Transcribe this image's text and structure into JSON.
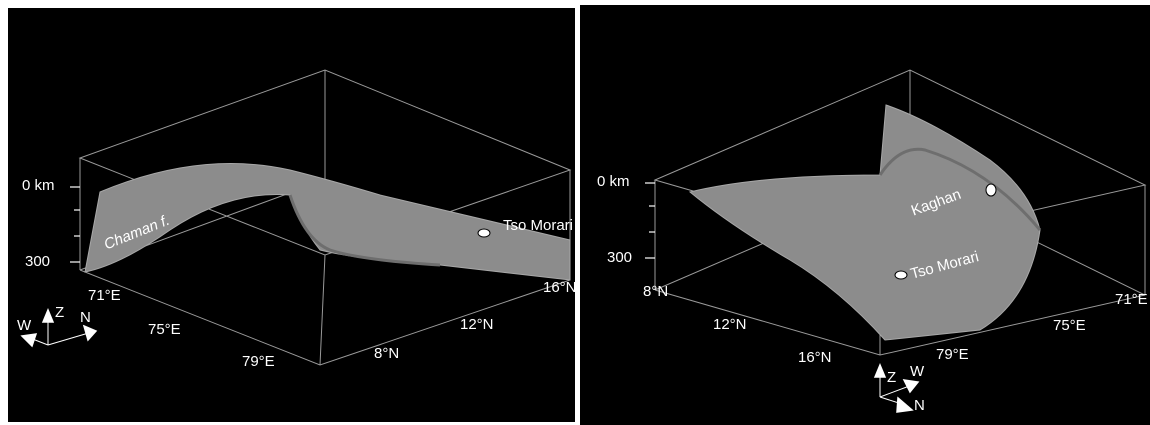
{
  "panels": [
    {
      "depth_labels": [
        "0 km",
        "300"
      ],
      "longitude_labels": [
        "71°E",
        "75°E",
        "79°E"
      ],
      "latitude_labels": [
        "8°N",
        "12°N",
        "16°N"
      ],
      "annotations": [
        "Chaman f.",
        "Tso Morari"
      ],
      "compass": [
        "W",
        "Z",
        "N"
      ]
    },
    {
      "depth_labels": [
        "0 km",
        "300"
      ],
      "latitude_labels": [
        "8°N",
        "12°N",
        "16°N"
      ],
      "longitude_labels": [
        "79°E",
        "75°E",
        "71°E"
      ],
      "annotations": [
        "Kaghan",
        "Tso Morari"
      ],
      "compass": [
        "Z",
        "W",
        "N"
      ]
    }
  ]
}
